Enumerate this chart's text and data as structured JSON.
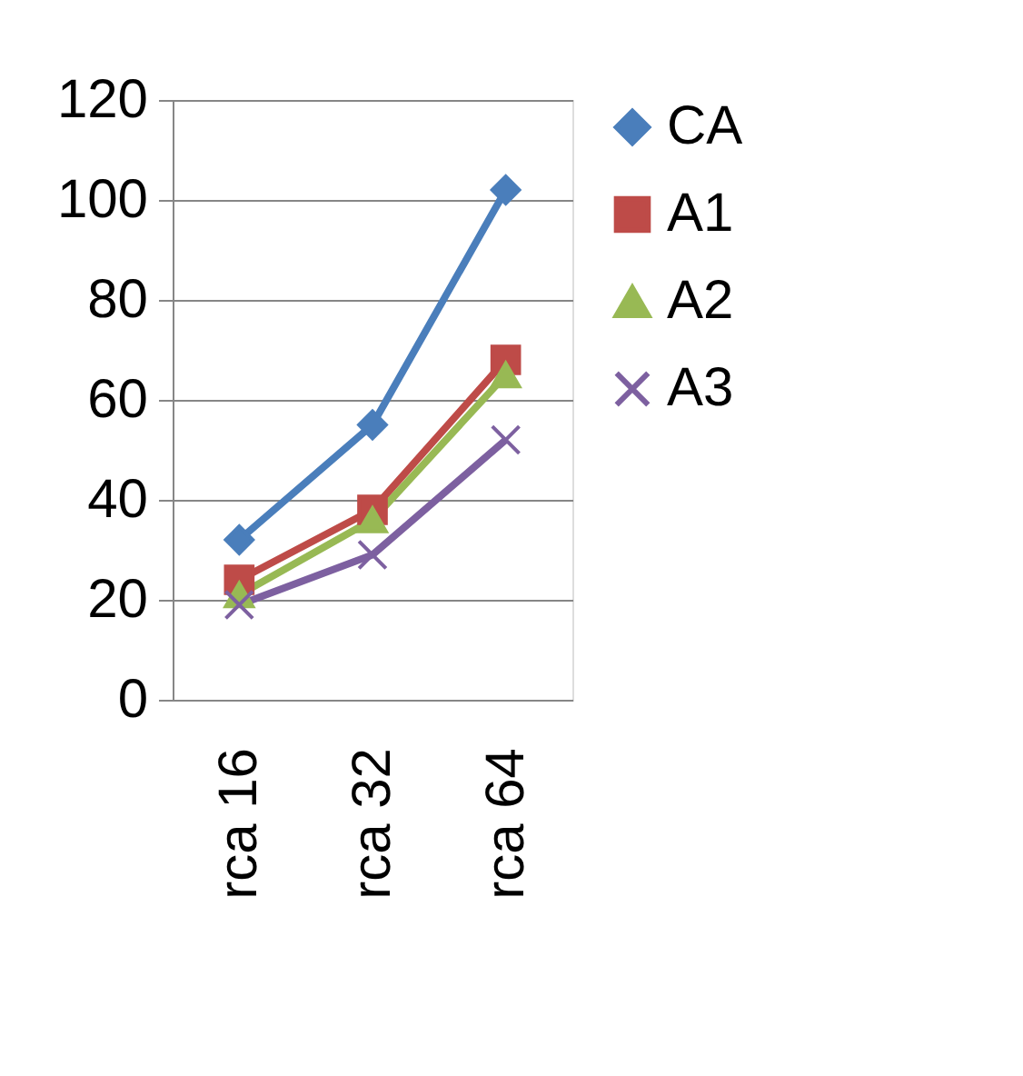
{
  "chart_data": {
    "type": "line",
    "categories": [
      "rca 16",
      "rca 32",
      "rca 64"
    ],
    "series": [
      {
        "name": "CA",
        "color": "#4a7ebb",
        "marker": "diamond",
        "values": [
          32,
          55,
          102
        ]
      },
      {
        "name": "A1",
        "color": "#be4b48",
        "marker": "square",
        "values": [
          24,
          38,
          68
        ]
      },
      {
        "name": "A2",
        "color": "#98b954",
        "marker": "triangle",
        "values": [
          21,
          36,
          65
        ]
      },
      {
        "name": "A3",
        "color": "#7d60a0",
        "marker": "cross",
        "values": [
          19,
          29,
          52
        ]
      }
    ],
    "ylim": [
      0,
      120
    ],
    "yticks": [
      0,
      20,
      40,
      60,
      80,
      100,
      120
    ],
    "grid": "y",
    "legend": "right",
    "line_style": "solid"
  }
}
